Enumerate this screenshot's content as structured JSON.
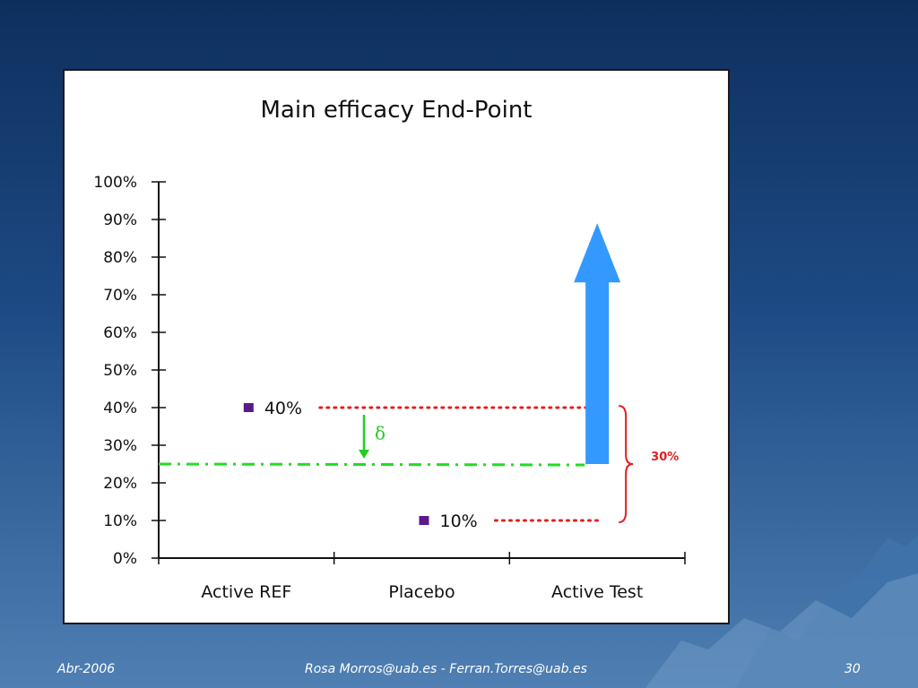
{
  "chart_data": {
    "type": "scatter",
    "title": "Main efficacy End-Point",
    "categories": [
      "Active REF",
      "Placebo",
      "Active Test"
    ],
    "y_ticks": [
      "0%",
      "10%",
      "20%",
      "30%",
      "40%",
      "50%",
      "60%",
      "70%",
      "80%",
      "90%",
      "100%"
    ],
    "ylim": [
      0,
      100
    ],
    "points": [
      {
        "category": "Active REF",
        "value": 40,
        "label": "40%"
      },
      {
        "category": "Placebo",
        "value": 10,
        "label": "10%"
      }
    ],
    "margin_line_value": 25,
    "delta_symbol": "δ",
    "arrow": {
      "category": "Active Test",
      "from": 25,
      "to": 89
    },
    "difference_label": "30%",
    "colors": {
      "point": "#5b1a8c",
      "arrow": "#3399ff",
      "margin_line": "#22dd22",
      "dotted": "#e02020",
      "brace": "#e02020",
      "delta_arrow": "#22cc22"
    }
  },
  "footer": {
    "date": "Abr-2006",
    "authors": "Rosa Morros@uab.es - Ferran.Torres@uab.es",
    "page": "30"
  }
}
